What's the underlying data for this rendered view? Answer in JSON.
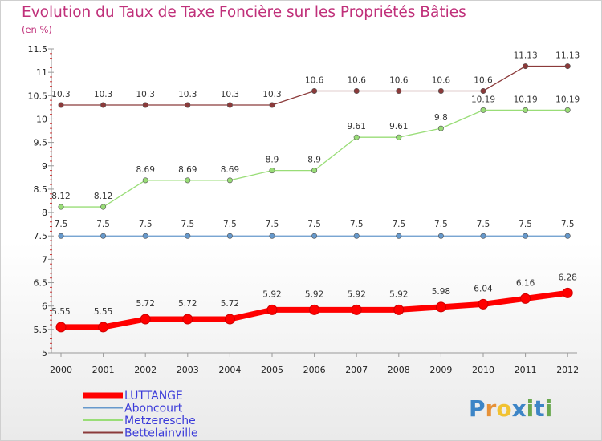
{
  "title": "Evolution du Taux de Taxe Foncière sur les Propriétés Bâties",
  "unit_label": "(en %)",
  "logo": {
    "text": "Proxiti",
    "letters": [
      "P",
      "r",
      "o",
      "x",
      "i",
      "t",
      "i"
    ],
    "colors": [
      "#3d85c6",
      "#e69138",
      "#f1c232",
      "#3d85c6",
      "#6aa84f",
      "#3d85c6",
      "#6aa84f"
    ]
  },
  "chart_data": {
    "type": "line",
    "title": "Evolution du Taux de Taxe Foncière sur les Propriétés Bâties",
    "ylabel": "(en %)",
    "xlabel": "",
    "ylim": [
      5,
      11.5
    ],
    "yticks": [
      "5",
      "5.5",
      "6",
      "6.5",
      "7",
      "7.5",
      "8",
      "8.5",
      "9",
      "9.5",
      "10",
      "10.5",
      "11",
      "11.5"
    ],
    "x": [
      "2000",
      "2001",
      "2002",
      "2003",
      "2004",
      "2005",
      "2006",
      "2007",
      "2008",
      "2009",
      "2010",
      "2011",
      "2012"
    ],
    "grid": false,
    "legend_position": "bottom-left",
    "series": [
      {
        "name": "LUTTANGE",
        "color": "#ff0000",
        "width": "thick",
        "values": [
          5.55,
          5.55,
          5.72,
          5.72,
          5.72,
          5.92,
          5.92,
          5.92,
          5.92,
          5.98,
          6.04,
          6.16,
          6.28
        ],
        "labels": [
          "5.55",
          "5.55",
          "5.72",
          "5.72",
          "5.72",
          "5.92",
          "5.92",
          "5.92",
          "5.92",
          "5.98",
          "6.04",
          "6.16",
          "6.28"
        ]
      },
      {
        "name": "Aboncourt",
        "color": "#6699cc",
        "width": "thin",
        "values": [
          7.5,
          7.5,
          7.5,
          7.5,
          7.5,
          7.5,
          7.5,
          7.5,
          7.5,
          7.5,
          7.5,
          7.5,
          7.5
        ],
        "labels": [
          "7.5",
          "7.5",
          "7.5",
          "7.5",
          "7.5",
          "7.5",
          "7.5",
          "7.5",
          "7.5",
          "7.5",
          "7.5",
          "7.5",
          "7.5"
        ]
      },
      {
        "name": "Metzeresche",
        "color": "#99dd77",
        "width": "thin",
        "values": [
          8.12,
          8.12,
          8.69,
          8.69,
          8.69,
          8.9,
          8.9,
          9.61,
          9.61,
          9.8,
          10.19,
          10.19,
          10.19
        ],
        "labels": [
          "8.12",
          "8.12",
          "8.69",
          "8.69",
          "8.69",
          "8.9",
          "8.9",
          "9.61",
          "9.61",
          "9.8",
          "10.19",
          "10.19",
          "10.19"
        ]
      },
      {
        "name": "Bettelainville",
        "color": "#8b3a3a",
        "width": "thin",
        "values": [
          10.3,
          10.3,
          10.3,
          10.3,
          10.3,
          10.3,
          10.6,
          10.6,
          10.6,
          10.6,
          10.6,
          11.13,
          11.13
        ],
        "labels": [
          "10.3",
          "10.3",
          "10.3",
          "10.3",
          "10.3",
          "10.3",
          "10.6",
          "10.6",
          "10.6",
          "10.6",
          "10.6",
          "11.13",
          "11.13"
        ]
      }
    ]
  }
}
